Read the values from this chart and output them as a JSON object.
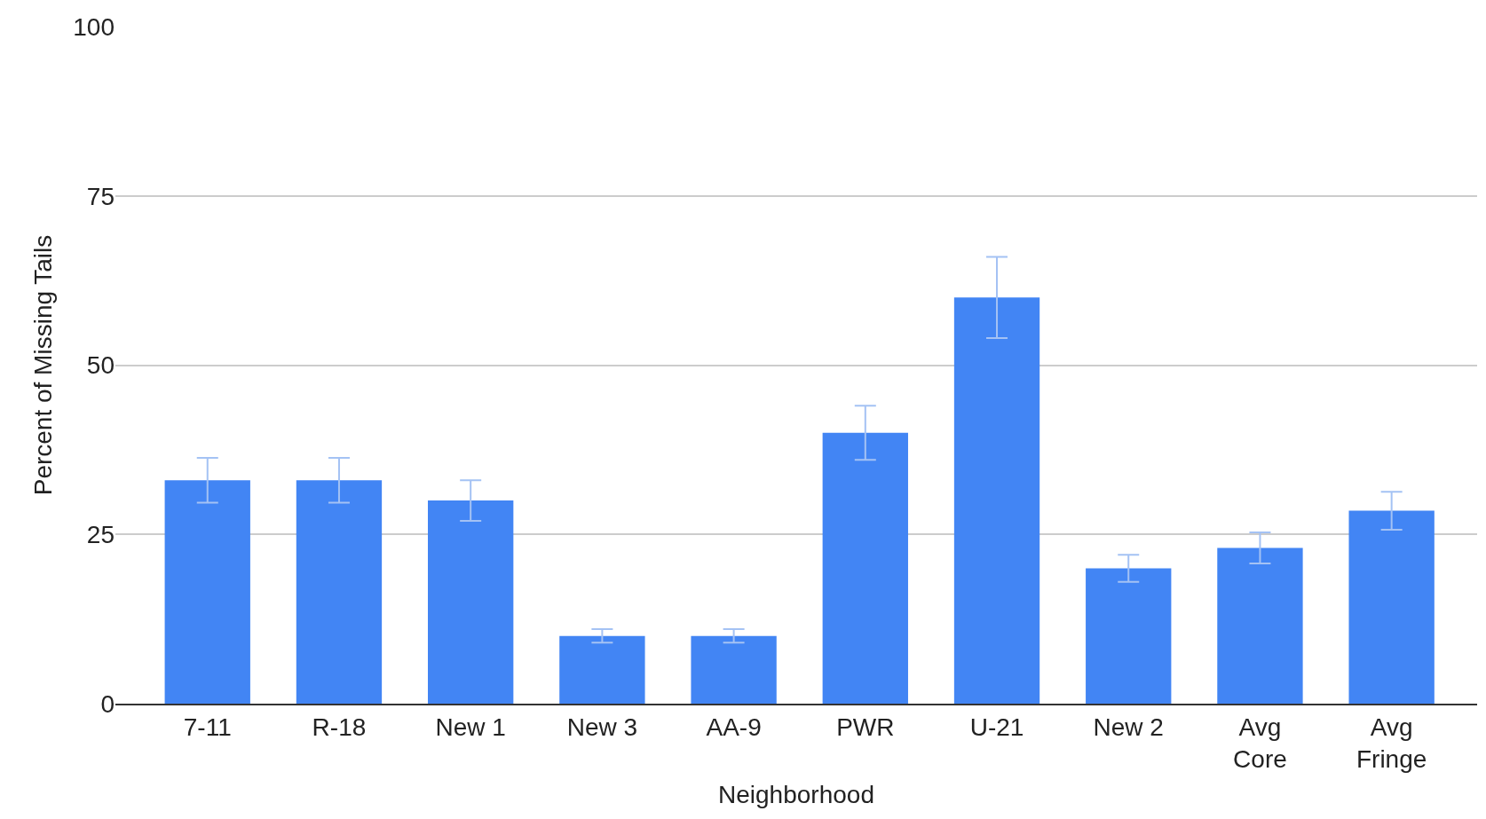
{
  "chart_data": {
    "type": "bar",
    "xlabel": "Neighborhood",
    "ylabel": "Percent of Missing Tails",
    "categories": [
      "7-11",
      "R-18",
      "New 1",
      "New 3",
      "AA-9",
      "PWR",
      "U-21",
      "New 2",
      "Avg Core",
      "Avg Fringe"
    ],
    "values": [
      33,
      33,
      30,
      10,
      10,
      40,
      60,
      20,
      23,
      28.5
    ],
    "errors": [
      3.3,
      3.3,
      3,
      1,
      1,
      4,
      6,
      2,
      2.3,
      2.8
    ],
    "color": "#4285f4",
    "ylim": [
      0,
      100
    ],
    "yticks": [
      0,
      25,
      50,
      75,
      100
    ],
    "grid": "y",
    "legend": false
  }
}
